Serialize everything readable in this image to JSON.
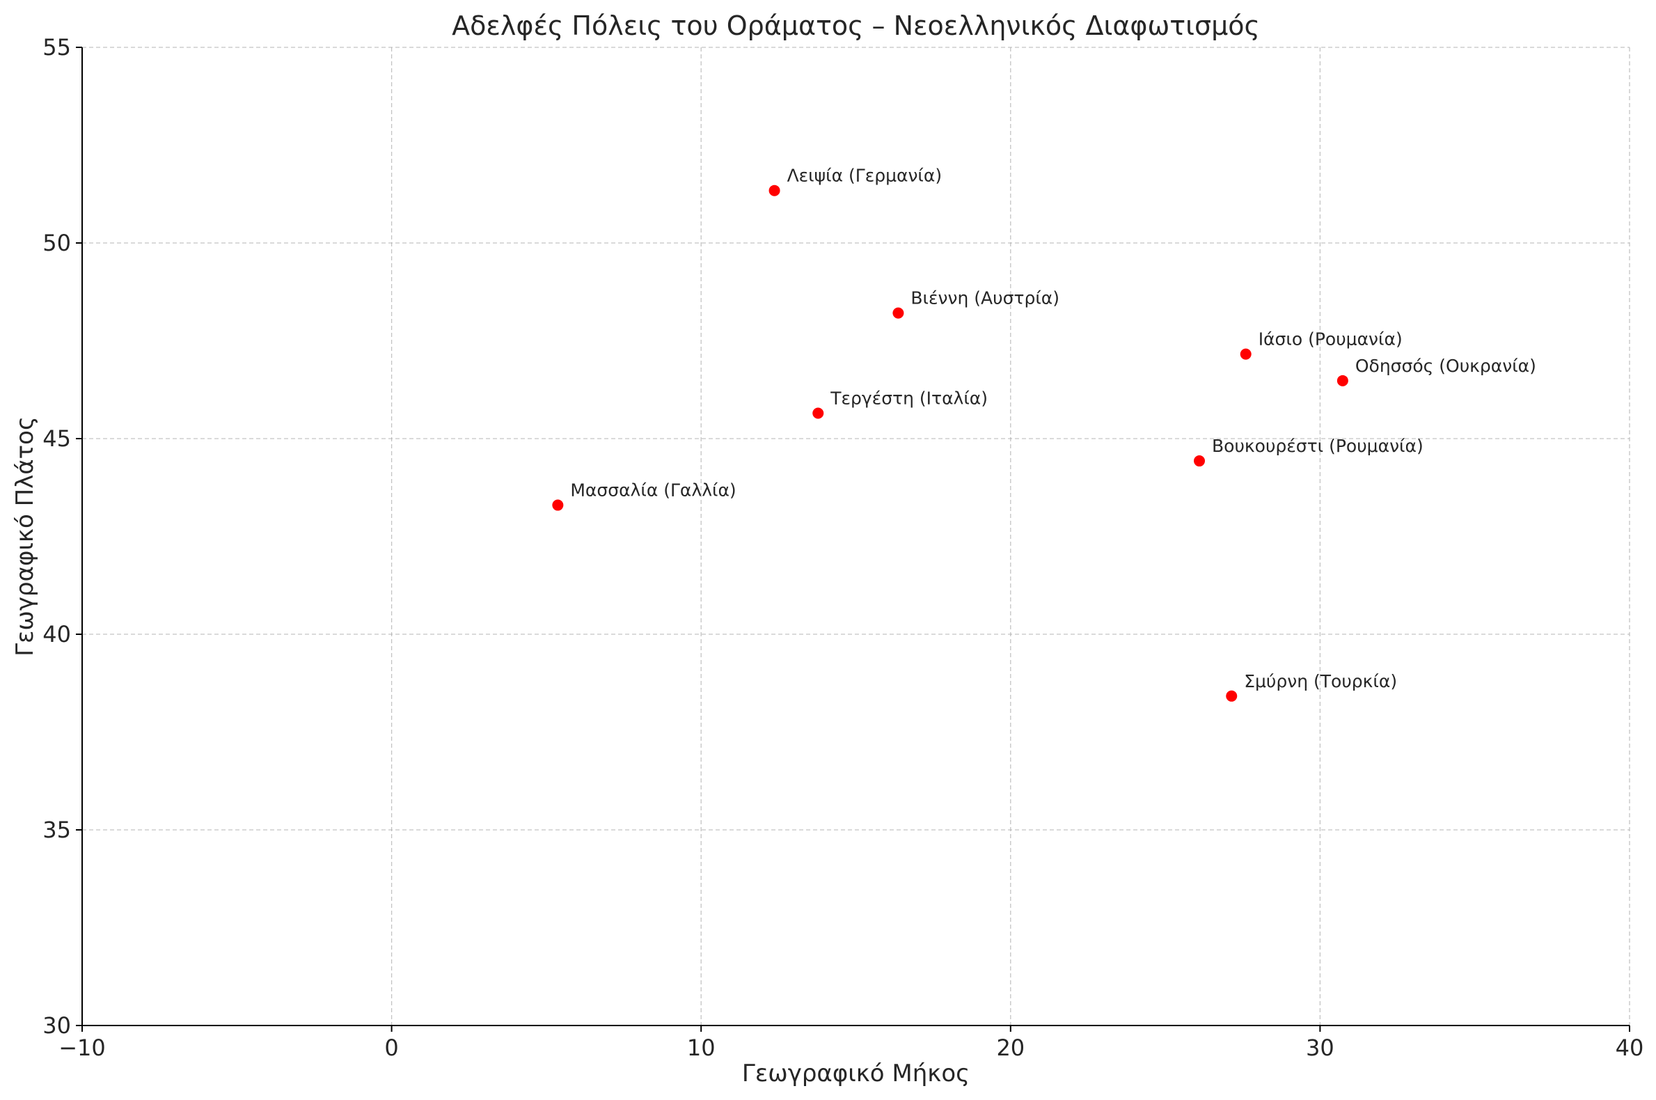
{
  "chart_data": {
    "type": "scatter",
    "title": "Αδελφές Πόλεις του Οράματος – Νεοελληνικός Διαφωτισμός",
    "xlabel": "Γεωγραφικό Μήκος",
    "ylabel": "Γεωγραφικό Πλάτος",
    "xlim": [
      -10,
      40
    ],
    "ylim": [
      30,
      55
    ],
    "xticks": [
      -10,
      0,
      10,
      20,
      30,
      40
    ],
    "yticks": [
      30,
      35,
      40,
      45,
      50,
      55
    ],
    "xtick_labels": [
      "−10",
      "0",
      "10",
      "20",
      "30",
      "40"
    ],
    "ytick_labels": [
      "30",
      "35",
      "40",
      "45",
      "50",
      "55"
    ],
    "grid": true,
    "marker_color": "#ff0000",
    "points": [
      {
        "label": "Λειψία (Γερμανία)",
        "x": 12.37,
        "y": 51.34
      },
      {
        "label": "Βιέννη (Αυστρία)",
        "x": 16.37,
        "y": 48.21
      },
      {
        "label": "Ιάσιο (Ρουμανία)",
        "x": 27.6,
        "y": 47.16
      },
      {
        "label": "Οδησσός (Ουκρανία)",
        "x": 30.73,
        "y": 46.48
      },
      {
        "label": "Τεργέστη (Ιταλία)",
        "x": 13.78,
        "y": 45.65
      },
      {
        "label": "Βουκουρέστι (Ρουμανία)",
        "x": 26.1,
        "y": 44.43
      },
      {
        "label": "Μασσαλία (Γαλλία)",
        "x": 5.37,
        "y": 43.3
      },
      {
        "label": "Σμύρνη (Τουρκία)",
        "x": 27.14,
        "y": 38.42
      }
    ]
  }
}
